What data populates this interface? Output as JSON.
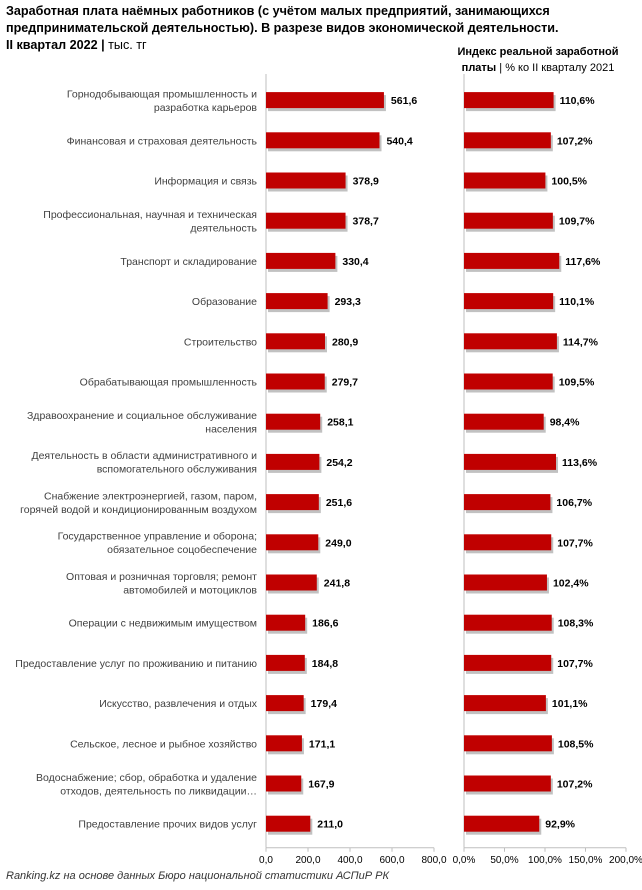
{
  "title": "Заработная плата наёмных работников (с учётом малых предприятий, занимающихся\nпредпринимательской деятельностью). В разрезе видов экономической деятельности.\nII квартал 2022",
  "title_unit": "тыс. тг",
  "right_subtitle_bold": "Индекс реальной заработной\nплаты",
  "right_subtitle_unit": "% ко II кварталу 2021",
  "source": "Ranking.kz на основе данных Бюро национальной статистики АСПиР РК",
  "colors": {
    "bar": "#c00000",
    "shadow": "#a6a6a6",
    "axis": "#bfbfbf"
  },
  "chart_data": [
    {
      "type": "bar",
      "orientation": "horizontal",
      "categories": [
        "Горнодобывающая промышленность и\nразработка карьеров",
        "Финансовая и страховая деятельность",
        "Информация и связь",
        "Профессиональная, научная и техническая\nдеятельность",
        "Транспорт и складирование",
        "Образование",
        "Строительство",
        "Обрабатывающая промышленность",
        "Здравоохранение и социальное обслуживание\nнаселения",
        "Деятельность в области административного и\nвспомогательного обслуживания",
        "Снабжение электроэнергией, газом, паром,\nгорячей водой и кондиционированным воздухом",
        "Государственное управление и оборона;\nобязательное соцобеспечение",
        "Оптовая и розничная торговля; ремонт\nавтомобилей и мотоциклов",
        "Операции с недвижимым имуществом",
        "Предоставление услуг по проживанию и питанию",
        "Искусство, развлечения и отдых",
        "Сельское, лесное и рыбное хозяйство",
        "Водоснабжение; сбор, обработка и удаление\nотходов, деятельность по ликвидации…",
        "Предоставление прочих видов услуг"
      ],
      "values": [
        561.6,
        540.4,
        378.9,
        378.7,
        330.4,
        293.3,
        280.9,
        279.7,
        258.1,
        254.2,
        251.6,
        249.0,
        241.8,
        186.6,
        184.8,
        179.4,
        171.1,
        167.9,
        211.0
      ],
      "value_labels": [
        "561,6",
        "540,4",
        "378,9",
        "378,7",
        "330,4",
        "293,3",
        "280,9",
        "279,7",
        "258,1",
        "254,2",
        "251,6",
        "249,0",
        "241,8",
        "186,6",
        "184,8",
        "179,4",
        "171,1",
        "167,9",
        "211,0"
      ],
      "xlim": [
        0,
        800
      ],
      "ticks": [
        "0,0",
        "200,0",
        "400,0",
        "600,0",
        "800,0"
      ]
    },
    {
      "type": "bar",
      "orientation": "horizontal",
      "values": [
        110.6,
        107.2,
        100.5,
        109.7,
        117.6,
        110.1,
        114.7,
        109.5,
        98.4,
        113.6,
        106.7,
        107.7,
        102.4,
        108.3,
        107.7,
        101.1,
        108.5,
        107.2,
        92.9
      ],
      "value_labels": [
        "110,6%",
        "107,2%",
        "100,5%",
        "109,7%",
        "117,6%",
        "110,1%",
        "114,7%",
        "109,5%",
        "98,4%",
        "113,6%",
        "106,7%",
        "107,7%",
        "102,4%",
        "108,3%",
        "107,7%",
        "101,1%",
        "108,5%",
        "107,2%",
        "92,9%"
      ],
      "xlim": [
        0,
        200
      ],
      "ticks": [
        "0,0%",
        "50,0%",
        "100,0%",
        "150,0%",
        "200,0%"
      ]
    }
  ]
}
